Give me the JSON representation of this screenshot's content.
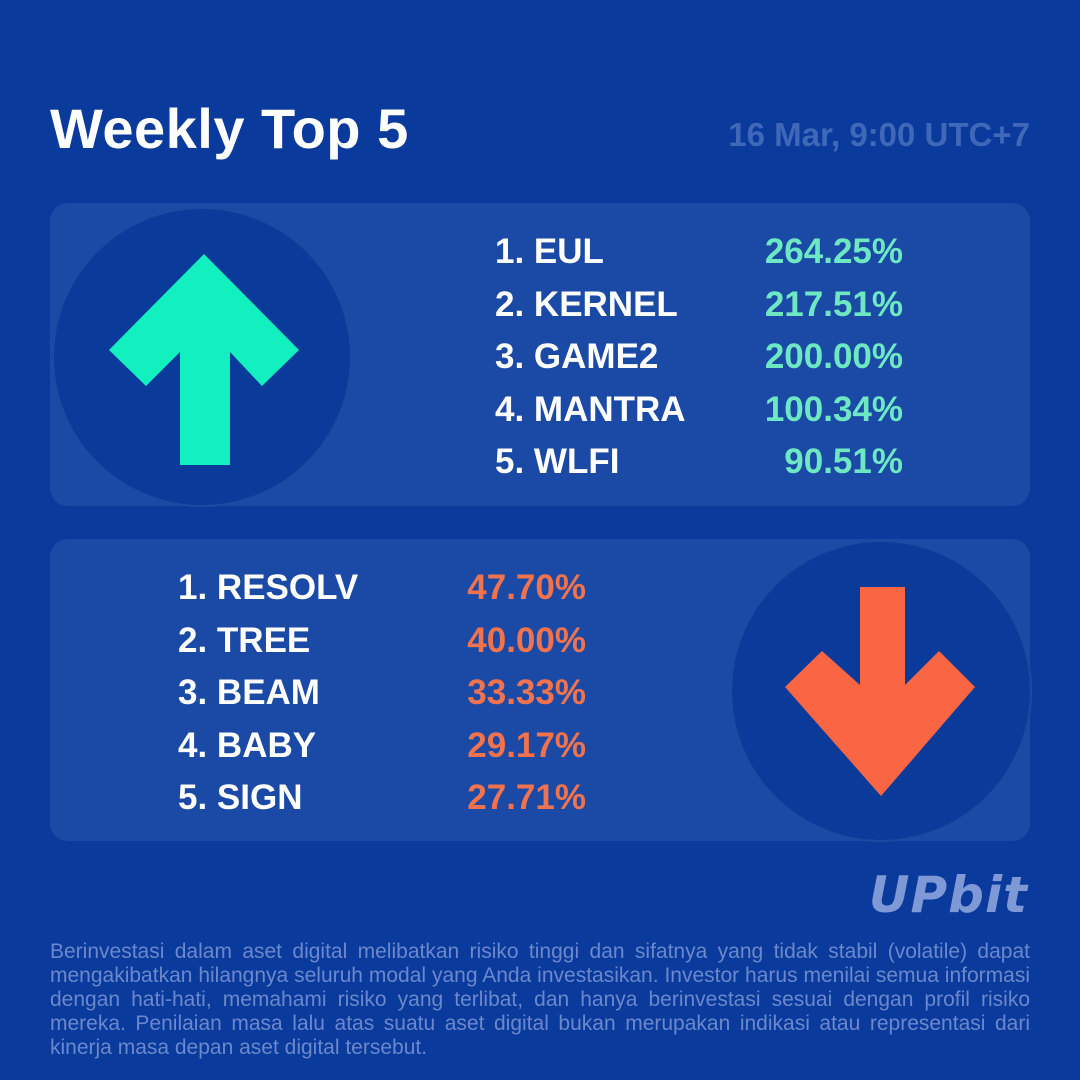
{
  "header": {
    "title": "Weekly Top 5",
    "timestamp": "16 Mar, 9:00 UTC+7"
  },
  "gainers": {
    "icon": "arrow-up-icon",
    "color": "#12f0c0",
    "items": [
      {
        "name": "1. EUL",
        "change": "264.25%"
      },
      {
        "name": "2. KERNEL",
        "change": "217.51%"
      },
      {
        "name": "3. GAME2",
        "change": "200.00%"
      },
      {
        "name": "4. MANTRA",
        "change": "100.34%"
      },
      {
        "name": "5. WLFI",
        "change": "90.51%"
      }
    ]
  },
  "losers": {
    "icon": "arrow-down-icon",
    "color": "#fa6543",
    "items": [
      {
        "name": "1. RESOLV",
        "change": "47.70%"
      },
      {
        "name": "2. TREE",
        "change": "40.00%"
      },
      {
        "name": "3. BEAM",
        "change": "33.33%"
      },
      {
        "name": "4. BABY",
        "change": "29.17%"
      },
      {
        "name": "5. SIGN",
        "change": "27.71%"
      }
    ]
  },
  "logo": {
    "text": "UPbit"
  },
  "disclaimer": "Berinvestasi dalam aset digital melibatkan risiko tinggi dan sifatnya yang tidak stabil (volatile) dapat mengakibatkan hilangnya seluruh modal yang Anda investasikan. Investor harus menilai semua informasi dengan hati-hati, memahami risiko yang terlibat, dan hanya berinvestasi sesuai dengan profil risiko mereka. Penilaian masa lalu atas suatu aset digital bukan merupakan indikasi atau representasi dari kinerja masa depan aset digital tersebut."
}
